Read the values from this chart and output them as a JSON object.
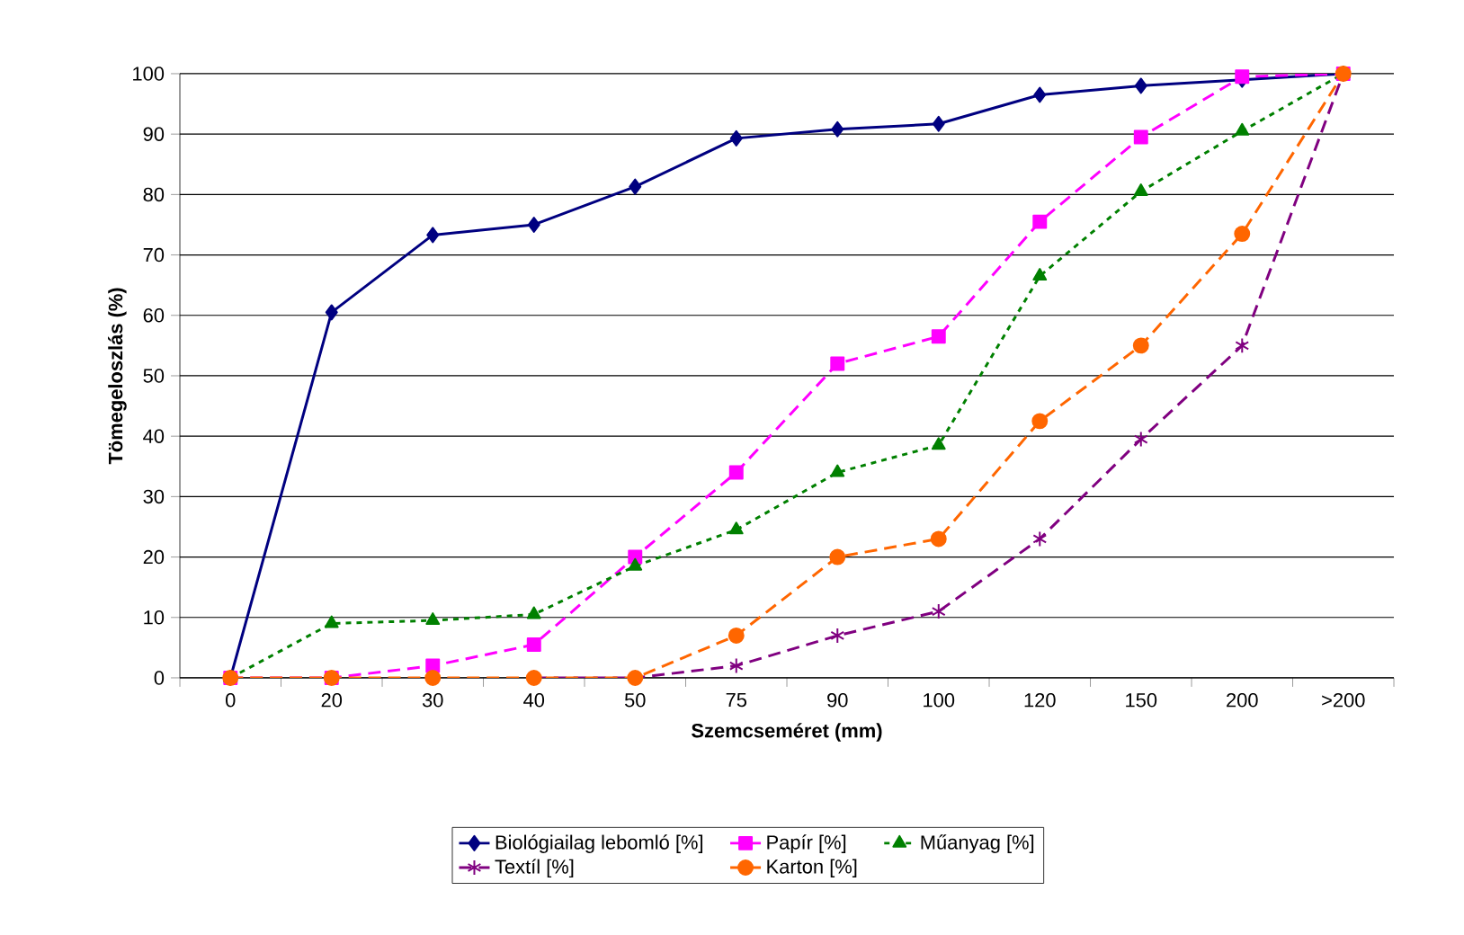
{
  "chart_data": {
    "type": "line",
    "xlabel": "Szemcseméret (mm)",
    "ylabel": "Tömegeloszlás (%)",
    "categories": [
      "0",
      "20",
      "30",
      "40",
      "50",
      "75",
      "90",
      "100",
      "120",
      "150",
      "200",
      ">200"
    ],
    "series": [
      {
        "name": "Biológiailag lebomló [%]",
        "color": "#000080",
        "marker": "diamond",
        "line_style": "solid",
        "values": [
          0,
          60.5,
          73.3,
          75,
          81.3,
          89.3,
          90.8,
          91.7,
          96.5,
          98,
          99,
          100
        ]
      },
      {
        "name": "Papír  [%]",
        "color": "#ff00ff",
        "marker": "square",
        "line_style": "dashed",
        "values": [
          0,
          0,
          2,
          5.5,
          20,
          34,
          52,
          56.5,
          75.5,
          89.5,
          99.5,
          100
        ]
      },
      {
        "name": "Műanyag  [%]",
        "color": "#008000",
        "marker": "triangle",
        "line_style": "dotted",
        "values": [
          0,
          9,
          9.5,
          10.5,
          18.5,
          24.5,
          34,
          38.5,
          66.5,
          80.5,
          90.5,
          100
        ]
      },
      {
        "name": "Textíl [%]",
        "color": "#800080",
        "marker": "cross",
        "line_style": "dashed",
        "values": [
          null,
          null,
          null,
          0,
          0,
          2,
          7,
          11,
          23,
          39.5,
          55,
          100
        ]
      },
      {
        "name": "Karton [%]",
        "color": "#ff6600",
        "marker": "circle",
        "line_style": "dashed",
        "values": [
          0,
          0,
          0,
          0,
          0,
          7,
          20,
          23,
          42.5,
          55,
          73.5,
          100
        ]
      }
    ],
    "ylim": [
      0,
      100
    ],
    "yticks": [
      0,
      10,
      20,
      30,
      40,
      50,
      60,
      70,
      80,
      90,
      100
    ],
    "grid": "y",
    "legend": "bottom"
  }
}
